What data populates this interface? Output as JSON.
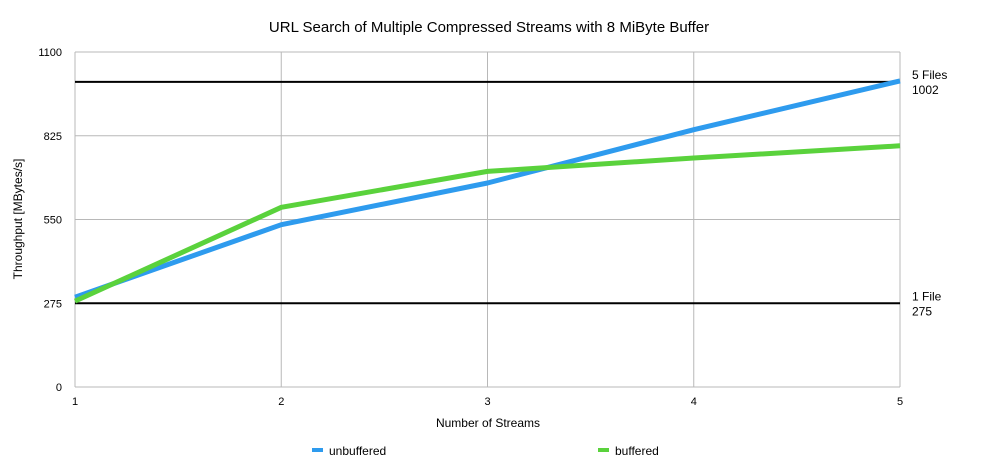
{
  "chart_data": {
    "type": "line",
    "title": "URL Search of Multiple Compressed Streams with 8 MiByte Buffer",
    "xlabel": "Number of Streams",
    "ylabel": "Throughput [MBytes/s]",
    "x": [
      1,
      2,
      3,
      4,
      5
    ],
    "xticks": [
      "1",
      "2",
      "3",
      "4",
      "5"
    ],
    "yticks": [
      "0",
      "275",
      "550",
      "825",
      "1100"
    ],
    "ylim": [
      0,
      1100
    ],
    "xlim": [
      1,
      5
    ],
    "grid": true,
    "legend_position": "bottom",
    "series": [
      {
        "name": "unbuffered",
        "color": "#2e9bee",
        "values": [
          295,
          533,
          670,
          845,
          1005
        ]
      },
      {
        "name": "buffered",
        "color": "#5ad23c",
        "values": [
          282,
          590,
          708,
          752,
          792
        ]
      }
    ],
    "reference_lines": [
      {
        "value": 1002,
        "label_line1": "5 Files",
        "label_line2": "1002"
      },
      {
        "value": 275,
        "label_line1": "1 File",
        "label_line2": "275"
      }
    ]
  }
}
